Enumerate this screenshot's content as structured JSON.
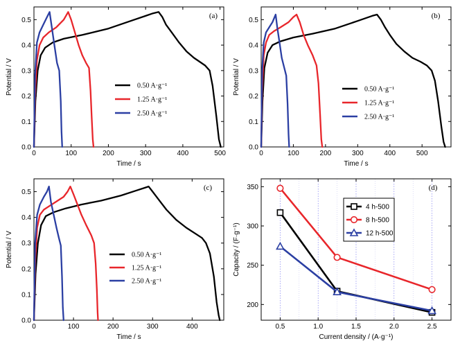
{
  "chart_data": [
    {
      "panel_label": "(a)",
      "type": "line",
      "xlabel": "Time / s",
      "ylabel": "Potential / V",
      "xlim": [
        0,
        510
      ],
      "ylim": [
        0,
        0.55
      ],
      "xticks": [
        0,
        100,
        200,
        300,
        400,
        500
      ],
      "yticks": [
        0,
        0.1,
        0.2,
        0.3,
        0.4,
        0.5
      ],
      "legend_position": "center-right",
      "series": [
        {
          "name": "0.50 A·g⁻¹",
          "color": "#000000",
          "x": [
            0,
            4,
            10,
            18,
            30,
            50,
            80,
            130,
            200,
            260,
            300,
            320,
            335,
            345,
            355,
            370,
            390,
            410,
            430,
            445,
            460,
            472,
            480,
            490,
            497,
            502
          ],
          "y": [
            0,
            0.18,
            0.3,
            0.36,
            0.39,
            0.41,
            0.425,
            0.44,
            0.465,
            0.495,
            0.515,
            0.525,
            0.53,
            0.51,
            0.48,
            0.45,
            0.41,
            0.375,
            0.35,
            0.335,
            0.32,
            0.3,
            0.24,
            0.12,
            0.03,
            0
          ]
        },
        {
          "name": "1.25 A·g⁻¹",
          "color": "#e8262b",
          "x": [
            0,
            3,
            8,
            15,
            25,
            40,
            60,
            80,
            92,
            100,
            110,
            120,
            130,
            140,
            148,
            152,
            155,
            158,
            160
          ],
          "y": [
            0,
            0.2,
            0.34,
            0.4,
            0.43,
            0.45,
            0.47,
            0.5,
            0.53,
            0.5,
            0.45,
            0.4,
            0.36,
            0.33,
            0.31,
            0.22,
            0.12,
            0.03,
            0
          ]
        },
        {
          "name": "2.50 A·g⁻¹",
          "color": "#2b3fa3",
          "x": [
            0,
            3,
            8,
            15,
            25,
            35,
            42,
            48,
            55,
            62,
            68,
            72,
            74,
            76
          ],
          "y": [
            0,
            0.28,
            0.41,
            0.45,
            0.48,
            0.51,
            0.53,
            0.47,
            0.4,
            0.33,
            0.3,
            0.18,
            0.06,
            0
          ]
        }
      ]
    },
    {
      "panel_label": "(b)",
      "type": "line",
      "xlabel": "Time / s",
      "ylabel": "Potential / V",
      "xlim": [
        0,
        590
      ],
      "ylim": [
        0,
        0.55
      ],
      "xticks": [
        0,
        100,
        200,
        300,
        400,
        500
      ],
      "yticks": [
        0,
        0.1,
        0.2,
        0.3,
        0.4,
        0.5
      ],
      "legend_position": "center-right",
      "series": [
        {
          "name": "0.50 A·g⁻¹",
          "color": "#000000",
          "x": [
            0,
            4,
            10,
            20,
            35,
            60,
            100,
            160,
            230,
            300,
            345,
            360,
            372,
            385,
            400,
            420,
            445,
            470,
            495,
            515,
            530,
            540,
            550,
            560,
            567,
            572
          ],
          "y": [
            0,
            0.18,
            0.31,
            0.37,
            0.4,
            0.415,
            0.43,
            0.445,
            0.465,
            0.495,
            0.515,
            0.52,
            0.5,
            0.47,
            0.44,
            0.405,
            0.375,
            0.35,
            0.335,
            0.32,
            0.3,
            0.26,
            0.18,
            0.08,
            0.02,
            0
          ]
        },
        {
          "name": "1.25 A·g⁻¹",
          "color": "#e8262b",
          "x": [
            0,
            3,
            8,
            15,
            25,
            40,
            60,
            85,
            100,
            110,
            120,
            132,
            145,
            160,
            172,
            178,
            183,
            187,
            190
          ],
          "y": [
            0,
            0.22,
            0.36,
            0.41,
            0.44,
            0.455,
            0.47,
            0.49,
            0.51,
            0.52,
            0.49,
            0.44,
            0.4,
            0.36,
            0.32,
            0.25,
            0.13,
            0.03,
            0
          ]
        },
        {
          "name": "2.50 A·g⁻¹",
          "color": "#2b3fa3",
          "x": [
            0,
            3,
            8,
            15,
            25,
            35,
            45,
            50,
            57,
            64,
            72,
            78,
            82,
            85,
            87
          ],
          "y": [
            0,
            0.3,
            0.41,
            0.45,
            0.47,
            0.49,
            0.52,
            0.47,
            0.41,
            0.35,
            0.31,
            0.28,
            0.17,
            0.05,
            0
          ]
        }
      ]
    },
    {
      "panel_label": "(c)",
      "type": "line",
      "xlabel": "Time  /  s",
      "ylabel": "Potential / V",
      "xlim": [
        0,
        480
      ],
      "ylim": [
        0,
        0.55
      ],
      "xticks": [
        0,
        100,
        200,
        300,
        400
      ],
      "yticks": [
        0,
        0.1,
        0.2,
        0.3,
        0.4,
        0.5
      ],
      "legend_position": "center-right",
      "series": [
        {
          "name": "0.50 A·g⁻¹",
          "color": "#000000",
          "x": [
            0,
            4,
            10,
            18,
            30,
            50,
            80,
            120,
            170,
            220,
            260,
            280,
            290,
            300,
            315,
            335,
            360,
            385,
            410,
            425,
            435,
            445,
            455,
            462,
            467,
            470
          ],
          "y": [
            0,
            0.18,
            0.3,
            0.37,
            0.405,
            0.42,
            0.435,
            0.45,
            0.465,
            0.485,
            0.505,
            0.515,
            0.52,
            0.5,
            0.47,
            0.43,
            0.39,
            0.36,
            0.335,
            0.32,
            0.3,
            0.26,
            0.17,
            0.07,
            0.02,
            0
          ]
        },
        {
          "name": "1.25 A·g⁻¹",
          "color": "#e8262b",
          "x": [
            0,
            3,
            8,
            15,
            25,
            40,
            60,
            75,
            85,
            92,
            100,
            110,
            120,
            132,
            145,
            152,
            156,
            159,
            161,
            162
          ],
          "y": [
            0,
            0.22,
            0.36,
            0.41,
            0.43,
            0.445,
            0.465,
            0.48,
            0.5,
            0.52,
            0.49,
            0.45,
            0.41,
            0.37,
            0.33,
            0.3,
            0.22,
            0.12,
            0.03,
            0
          ]
        },
        {
          "name": "2.50 A·g⁻¹",
          "color": "#2b3fa3",
          "x": [
            0,
            3,
            8,
            15,
            25,
            33,
            38,
            43,
            50,
            57,
            63,
            68,
            71,
            73,
            75
          ],
          "y": [
            0,
            0.3,
            0.41,
            0.45,
            0.48,
            0.5,
            0.52,
            0.46,
            0.41,
            0.36,
            0.32,
            0.29,
            0.17,
            0.05,
            0
          ]
        }
      ]
    },
    {
      "panel_label": "(d)",
      "type": "line",
      "xlabel": "Current density / (A·g⁻¹)",
      "ylabel": "Capacity / (F·g⁻¹)",
      "xlim": [
        0.25,
        2.75
      ],
      "ylim": [
        180,
        360
      ],
      "xticks": [
        0.5,
        1.0,
        1.5,
        2.0,
        2.5
      ],
      "yticks": [
        200,
        250,
        300,
        350
      ],
      "grid_x": true,
      "legend_position": "upper-center",
      "series": [
        {
          "name": "4 h-500",
          "color": "#000000",
          "marker": "square",
          "x": [
            0.5,
            1.25,
            2.5
          ],
          "y": [
            317,
            217,
            190
          ]
        },
        {
          "name": "8 h-500",
          "color": "#e8262b",
          "marker": "circle",
          "x": [
            0.5,
            1.25,
            2.5
          ],
          "y": [
            348,
            260,
            219
          ]
        },
        {
          "name": "12 h-500",
          "color": "#2b3fa3",
          "marker": "triangle",
          "x": [
            0.5,
            1.25,
            2.5
          ],
          "y": [
            274,
            216,
            192
          ]
        }
      ]
    }
  ]
}
